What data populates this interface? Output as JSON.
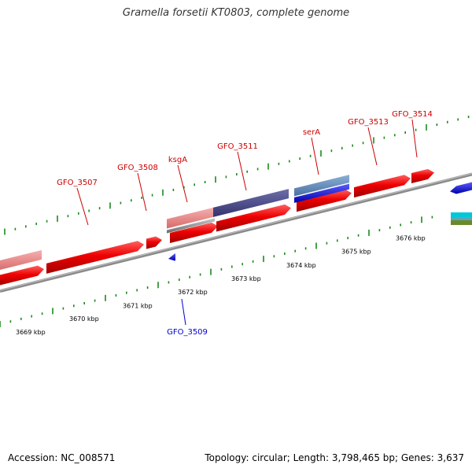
{
  "title": "Gramella forsetii KT0803, complete genome",
  "footer": {
    "accession": "Accession: NC_008571",
    "summary": "Topology: circular; Length: 3,798,465 bp; Genes: 3,637"
  },
  "colors": {
    "forward_gene": "#ee0000",
    "forward_gene_light": "#ee8080",
    "reverse_gene": "#0000ee",
    "highlight_gene": "#4a4a8c",
    "backbone": "#8a8a8a",
    "tick": "#1a8a1a",
    "label_red": "#cc0000",
    "label_blue": "#0000cc"
  },
  "kbp_ticks": [
    "3669 kbp",
    "3670 kbp",
    "3671 kbp",
    "3672 kbp",
    "3673 kbp",
    "3674 kbp",
    "3675 kbp",
    "3676 kbp"
  ],
  "gene_labels": [
    {
      "name": "GFO_3507",
      "strand": "forward"
    },
    {
      "name": "GFO_3508",
      "strand": "forward"
    },
    {
      "name": "ksgA",
      "strand": "forward"
    },
    {
      "name": "GFO_3511",
      "strand": "forward"
    },
    {
      "name": "serA",
      "strand": "forward"
    },
    {
      "name": "GFO_3513",
      "strand": "forward"
    },
    {
      "name": "GFO_3514",
      "strand": "forward"
    },
    {
      "name": "GFO_3509",
      "strand": "reverse"
    }
  ]
}
